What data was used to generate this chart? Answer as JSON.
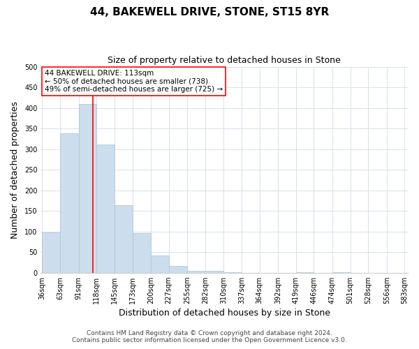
{
  "title": "44, BAKEWELL DRIVE, STONE, ST15 8YR",
  "subtitle": "Size of property relative to detached houses in Stone",
  "xlabel": "Distribution of detached houses by size in Stone",
  "ylabel": "Number of detached properties",
  "bar_color": "#ccdded",
  "bar_edge_color": "#aac4d8",
  "bar_values": [
    97,
    338,
    410,
    311,
    163,
    96,
    42,
    17,
    4,
    4,
    1,
    0,
    0,
    0,
    1,
    0,
    1
  ],
  "bin_labels": [
    "36sqm",
    "63sqm",
    "91sqm",
    "118sqm",
    "145sqm",
    "173sqm",
    "200sqm",
    "227sqm",
    "255sqm",
    "282sqm",
    "310sqm",
    "337sqm",
    "364sqm",
    "392sqm",
    "419sqm",
    "446sqm",
    "474sqm",
    "501sqm",
    "528sqm",
    "556sqm",
    "583sqm"
  ],
  "ylim": [
    0,
    500
  ],
  "yticks": [
    0,
    50,
    100,
    150,
    200,
    250,
    300,
    350,
    400,
    450,
    500
  ],
  "marker_label": "44 BAKEWELL DRIVE: 113sqm",
  "annotation_line1": "← 50% of detached houses are smaller (738)",
  "annotation_line2": "49% of semi-detached houses are larger (725) →",
  "footer1": "Contains HM Land Registry data © Crown copyright and database right 2024.",
  "footer2": "Contains public sector information licensed under the Open Government Licence v3.0.",
  "bg_color": "#ffffff",
  "grid_color": "#d0dce8",
  "title_fontsize": 11,
  "subtitle_fontsize": 9,
  "axis_label_fontsize": 9,
  "tick_fontsize": 7,
  "annotation_fontsize": 7.5,
  "footer_fontsize": 6.5
}
